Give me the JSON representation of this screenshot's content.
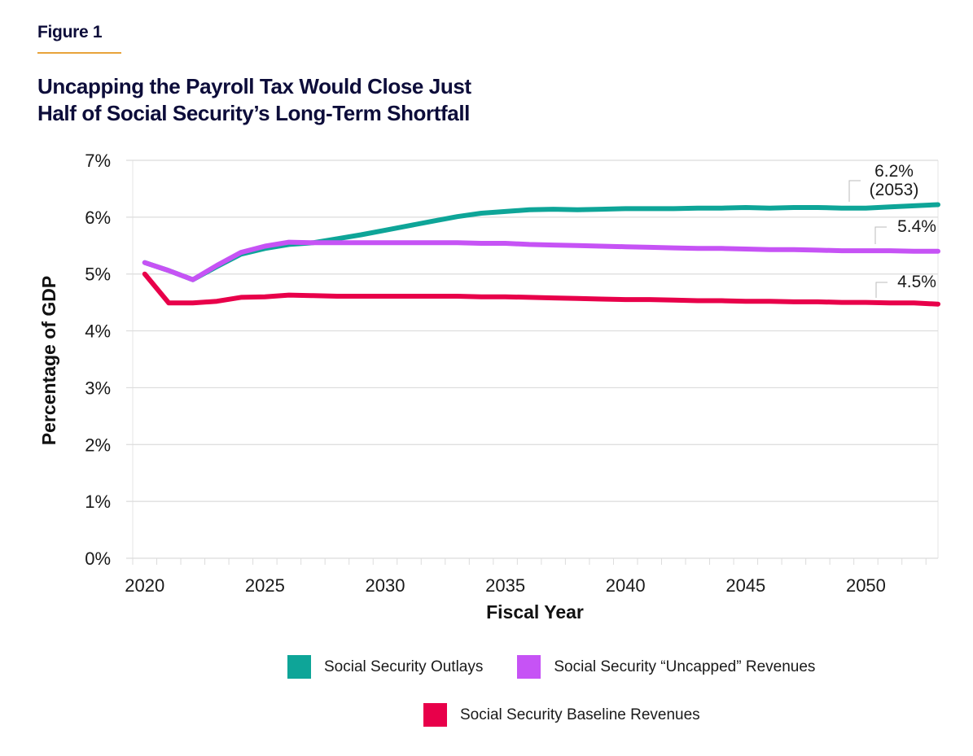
{
  "figure_label": "Figure 1",
  "colors": {
    "outlays": "#0ea598",
    "uncapped": "#c653f5",
    "baseline": "#e8004a",
    "title": "#0d0d3a",
    "rule": "#e8a33a",
    "grid": "#dcdcdc"
  },
  "chart_data": {
    "type": "line",
    "title_lines": [
      "Uncapping the Payroll Tax Would Close Just",
      "Half of Social Security’s Long-Term Shortfall"
    ],
    "xlabel": "Fiscal Year",
    "ylabel": "Percentage of GDP",
    "xlim": [
      2019.5,
      2053
    ],
    "ylim": [
      0,
      7
    ],
    "grid": true,
    "yticks": [
      0,
      1,
      2,
      3,
      4,
      5,
      6,
      7
    ],
    "ytick_labels": [
      "0%",
      "1%",
      "2%",
      "3%",
      "4%",
      "5%",
      "6%",
      "7%"
    ],
    "xticks": [
      2020,
      2025,
      2030,
      2035,
      2040,
      2045,
      2050
    ],
    "xtick_labels": [
      "2020",
      "2025",
      "2030",
      "2035",
      "2040",
      "2045",
      "2050"
    ],
    "x": [
      2020,
      2021,
      2022,
      2023,
      2024,
      2025,
      2026,
      2027,
      2028,
      2029,
      2030,
      2031,
      2032,
      2033,
      2034,
      2035,
      2036,
      2037,
      2038,
      2039,
      2040,
      2041,
      2042,
      2043,
      2044,
      2045,
      2046,
      2047,
      2048,
      2049,
      2050,
      2051,
      2052,
      2053
    ],
    "series": [
      {
        "key": "outlays",
        "name": "Social Security Outlays",
        "values": [
          5.2,
          5.06,
          4.9,
          5.13,
          5.35,
          5.45,
          5.52,
          5.55,
          5.62,
          5.69,
          5.77,
          5.85,
          5.93,
          6.01,
          6.07,
          6.1,
          6.13,
          6.14,
          6.13,
          6.14,
          6.15,
          6.15,
          6.15,
          6.16,
          6.16,
          6.17,
          6.16,
          6.17,
          6.17,
          6.16,
          6.16,
          6.18,
          6.2,
          6.22
        ],
        "end_label": [
          "6.2%",
          "(2053)"
        ]
      },
      {
        "key": "uncapped",
        "name": "Social Security “Uncapped” Revenues",
        "values": [
          5.2,
          5.06,
          4.9,
          5.15,
          5.38,
          5.49,
          5.56,
          5.55,
          5.55,
          5.55,
          5.55,
          5.55,
          5.55,
          5.55,
          5.54,
          5.54,
          5.52,
          5.51,
          5.5,
          5.49,
          5.48,
          5.47,
          5.46,
          5.45,
          5.45,
          5.44,
          5.43,
          5.43,
          5.42,
          5.41,
          5.41,
          5.41,
          5.4,
          5.4
        ],
        "end_label": [
          "5.4%"
        ]
      },
      {
        "key": "baseline",
        "name": "Social Security Baseline Revenues",
        "values": [
          5.0,
          4.49,
          4.49,
          4.52,
          4.59,
          4.6,
          4.63,
          4.62,
          4.61,
          4.61,
          4.61,
          4.61,
          4.61,
          4.61,
          4.6,
          4.6,
          4.59,
          4.58,
          4.57,
          4.56,
          4.55,
          4.55,
          4.54,
          4.53,
          4.53,
          4.52,
          4.52,
          4.51,
          4.51,
          4.5,
          4.5,
          4.49,
          4.49,
          4.47
        ],
        "end_label": [
          "4.5%"
        ]
      }
    ],
    "legend_position": "bottom-center"
  }
}
